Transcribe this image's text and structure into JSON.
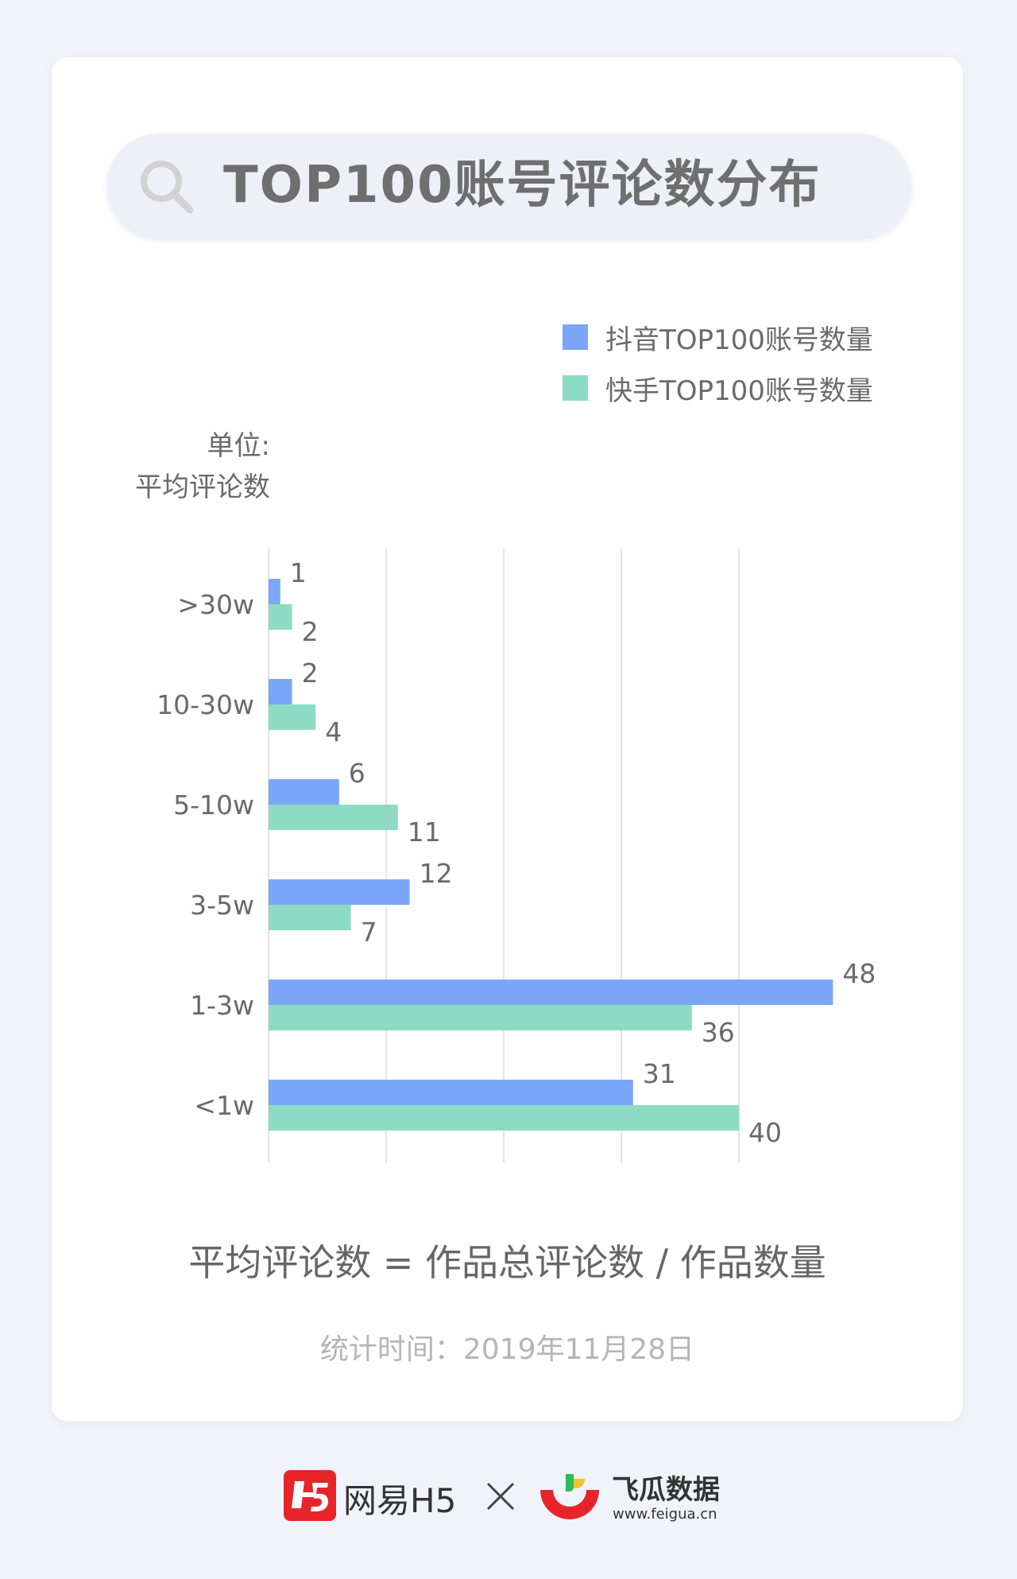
{
  "title": "TOP100账号评论数分布",
  "legend": [
    {
      "label": "抖音TOP100账号数量",
      "color": "#7ba6f7"
    },
    {
      "label": "快手TOP100账号数量",
      "color": "#8ddbc2"
    }
  ],
  "unit": {
    "line1": "单位:",
    "line2": "平均评论数"
  },
  "chart_data": {
    "type": "bar",
    "orientation": "horizontal",
    "categories": [
      ">30w",
      "10-30w",
      "5-10w",
      "3-5w",
      "1-3w",
      "<1w"
    ],
    "series": [
      {
        "name": "抖音TOP100账号数量",
        "values": [
          1,
          2,
          6,
          12,
          48,
          31
        ],
        "color": "#7ba6f7"
      },
      {
        "name": "快手TOP100账号数量",
        "values": [
          2,
          4,
          11,
          7,
          36,
          40
        ],
        "color": "#8ddbc2"
      }
    ],
    "xlim": [
      0,
      50
    ],
    "gridlines": [
      0,
      10,
      20,
      30,
      40
    ],
    "grid": true,
    "show_x_tick_labels": false,
    "data_labels": true,
    "legend_position": "top-right"
  },
  "formula": "平均评论数 = 作品总评论数 / 作品数量",
  "stat_time": "统计时间：2019年11月28日",
  "footer": {
    "brand1": "网易H5",
    "brand2_name": "飞瓜数据",
    "brand2_url": "www.feigua.cn"
  }
}
